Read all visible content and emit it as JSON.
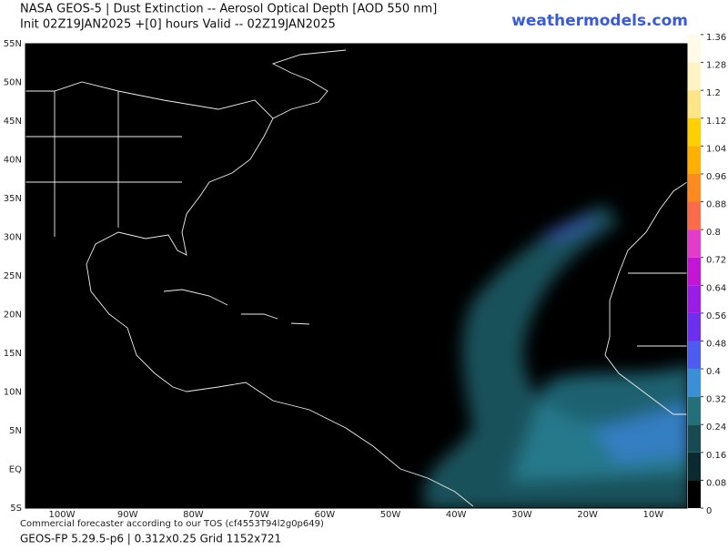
{
  "header": {
    "title": "NASA GEOS-5 | Dust Extinction -- Aerosol Optical Depth [AOD 550 nm]",
    "subtitle": "Init 02Z19JAN2025 +[0] hours Valid -- 02Z19JAN2025",
    "brand": "weathermodels.com"
  },
  "map": {
    "lat_labels": [
      "55N",
      "50N",
      "45N",
      "40N",
      "35N",
      "30N",
      "25N",
      "20N",
      "15N",
      "10N",
      "5N",
      "EQ",
      "5S"
    ],
    "lon_labels": [
      "100W",
      "90W",
      "80W",
      "70W",
      "60W",
      "50W",
      "40W",
      "30W",
      "20W",
      "10W"
    ]
  },
  "colorbar": {
    "ticks": [
      0,
      0.08,
      0.16,
      0.24,
      0.32,
      0.4,
      0.48,
      0.56,
      0.64,
      0.72,
      0.8,
      0.88,
      0.96,
      1.04,
      1.12,
      1.2,
      1.28,
      1.36
    ],
    "colors": [
      "#000000",
      "#0b2a30",
      "#174a52",
      "#23707a",
      "#3a8fd6",
      "#4d5cf0",
      "#6d2ef0",
      "#9a1ce6",
      "#c414d6",
      "#e23cc8",
      "#ff6a4a",
      "#ff8a20",
      "#ffb000",
      "#ffd000",
      "#ffe488",
      "#fff2c4",
      "#fffaea"
    ]
  },
  "footer": {
    "note": "Commercial forecaster according to our TOS (cf4553T94l2g0p649)",
    "grid": "GEOS-FP 5.29.5-p6 | 0.312x0.25 Grid 1152x721"
  }
}
